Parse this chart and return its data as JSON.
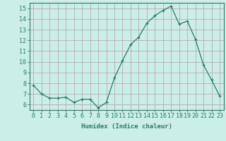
{
  "x": [
    0,
    1,
    2,
    3,
    4,
    5,
    6,
    7,
    8,
    9,
    10,
    11,
    12,
    13,
    14,
    15,
    16,
    17,
    18,
    19,
    20,
    21,
    22,
    23
  ],
  "y": [
    7.8,
    7.0,
    6.6,
    6.6,
    6.7,
    6.2,
    6.5,
    6.5,
    5.7,
    6.2,
    8.5,
    10.1,
    11.6,
    12.3,
    13.6,
    14.3,
    14.8,
    15.2,
    13.5,
    13.8,
    12.1,
    9.7,
    8.3,
    6.8
  ],
  "line_color": "#2a7a6a",
  "marker": "+",
  "marker_size": 3,
  "bg_color": "#cceee8",
  "grid_color": "#b8a8b8",
  "xlabel": "Humidex (Indice chaleur)",
  "ylim": [
    5.5,
    15.5
  ],
  "xlim": [
    -0.5,
    23.5
  ],
  "yticks": [
    6,
    7,
    8,
    9,
    10,
    11,
    12,
    13,
    14,
    15
  ],
  "xticks": [
    0,
    1,
    2,
    3,
    4,
    5,
    6,
    7,
    8,
    9,
    10,
    11,
    12,
    13,
    14,
    15,
    16,
    17,
    18,
    19,
    20,
    21,
    22,
    23
  ],
  "tick_color": "#2a7a6a",
  "label_fontsize": 6.5,
  "tick_fontsize": 6,
  "spine_color": "#2a7a6a",
  "linewidth": 0.9,
  "markeredgewidth": 0.9
}
